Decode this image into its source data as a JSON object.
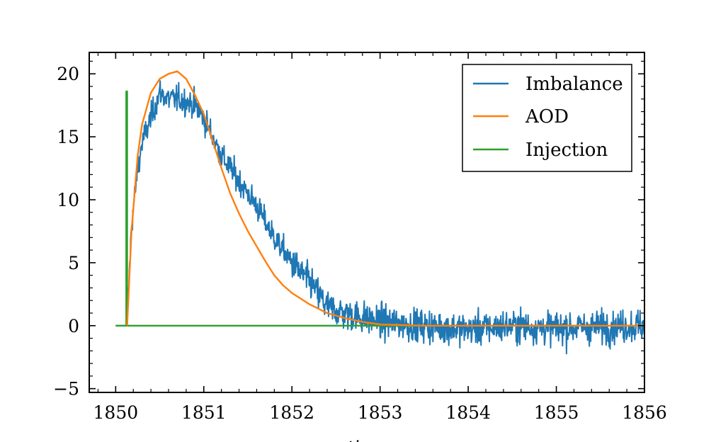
{
  "chart_data": {
    "type": "line",
    "title": "",
    "xlabel": "time",
    "ylabel": "",
    "xlim": [
      1849.7,
      1856.0
    ],
    "ylim": [
      -5.3,
      21.7
    ],
    "xticks": [
      1850,
      1851,
      1852,
      1853,
      1854,
      1855,
      1856
    ],
    "xtick_labels": [
      "1850",
      "1851",
      "1852",
      "1853",
      "1854",
      "1855",
      "1856"
    ],
    "yticks": [
      -5,
      0,
      5,
      10,
      15,
      20
    ],
    "ytick_labels": [
      "−5",
      "0",
      "5",
      "10",
      "15",
      "20"
    ],
    "grid": false,
    "legend_position": "top-right",
    "series": [
      {
        "name": "Imbalance",
        "color": "#1f77b4",
        "noise": "high-frequency fluctuations of roughly ±1.5 around the smooth trend",
        "x": [
          1850.0,
          1850.1,
          1850.13,
          1850.18,
          1850.25,
          1850.3,
          1850.35,
          1850.4,
          1850.5,
          1850.6,
          1850.7,
          1850.8,
          1850.9,
          1851.0,
          1851.1,
          1851.2,
          1851.3,
          1851.4,
          1851.5,
          1851.6,
          1851.7,
          1851.8,
          1851.9,
          1852.0,
          1852.1,
          1852.2,
          1852.3,
          1852.4,
          1852.5,
          1852.7,
          1853.0,
          1853.5,
          1854.0,
          1854.5,
          1855.0,
          1855.5,
          1856.0
        ],
        "y": [
          0,
          0,
          0,
          8.0,
          12.5,
          14.5,
          15.5,
          16.5,
          18.5,
          18.0,
          18.0,
          17.8,
          17.5,
          16.5,
          15.0,
          13.5,
          12.5,
          11.5,
          10.5,
          9.5,
          8.2,
          7.0,
          6.0,
          5.0,
          4.2,
          3.5,
          2.5,
          1.5,
          1.2,
          0.8,
          0.3,
          0.0,
          -0.3,
          0.0,
          -0.2,
          -0.1,
          0.0
        ]
      },
      {
        "name": "AOD",
        "color": "#ff7f0e",
        "x": [
          1850.13,
          1850.18,
          1850.25,
          1850.3,
          1850.4,
          1850.5,
          1850.6,
          1850.7,
          1850.8,
          1850.9,
          1851.0,
          1851.1,
          1851.2,
          1851.3,
          1851.4,
          1851.5,
          1851.6,
          1851.7,
          1851.8,
          1851.9,
          1852.0,
          1852.2,
          1852.4,
          1852.6,
          1852.8,
          1853.0,
          1853.5,
          1854.0,
          1856.0
        ],
        "y": [
          0,
          7.5,
          13.5,
          16.0,
          18.5,
          19.6,
          20.0,
          20.2,
          19.6,
          18.3,
          16.8,
          14.7,
          12.5,
          10.5,
          8.9,
          7.5,
          6.3,
          5.1,
          4.0,
          3.2,
          2.6,
          1.7,
          1.0,
          0.6,
          0.3,
          0.1,
          0.0,
          0.0,
          0.0
        ]
      },
      {
        "name": "Injection",
        "color": "#2ca02c",
        "x": [
          1850.0,
          1850.12,
          1850.12,
          1850.13,
          1850.13,
          1856.0
        ],
        "y": [
          0,
          0,
          18.6,
          18.6,
          0,
          0
        ]
      }
    ]
  }
}
